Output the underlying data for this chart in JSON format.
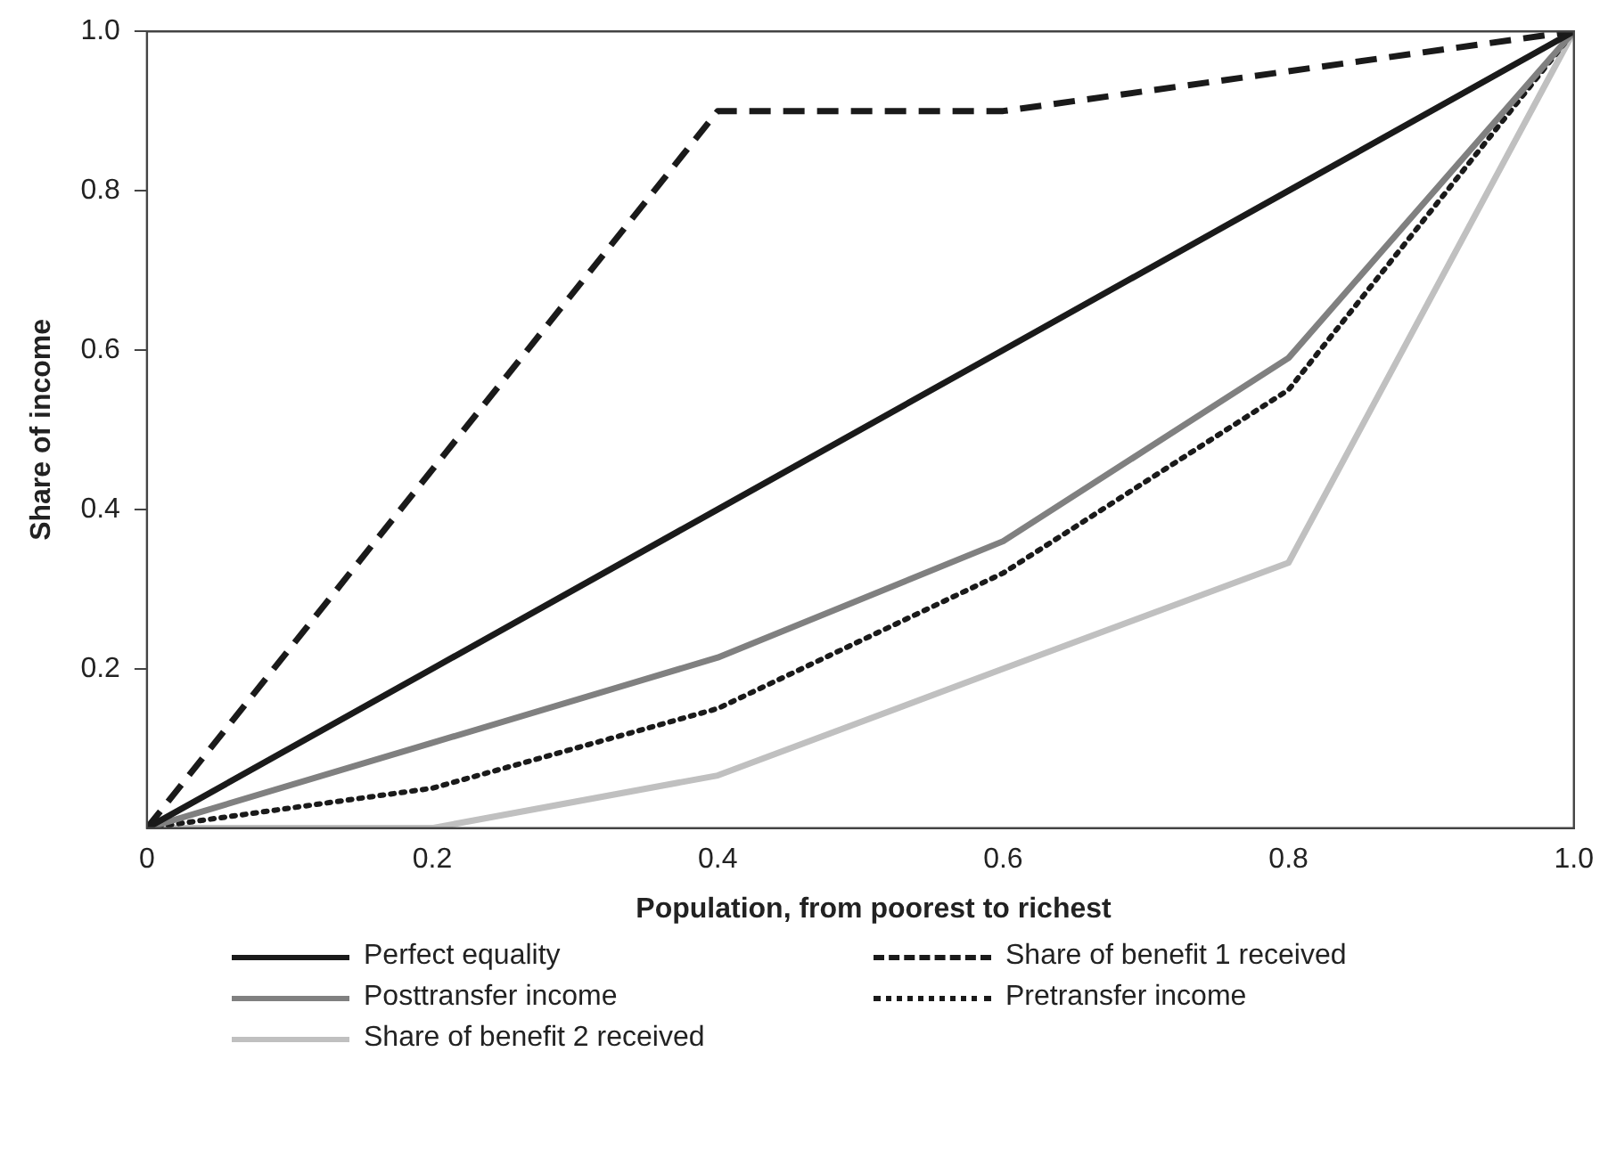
{
  "chart_data": {
    "type": "line",
    "xlabel": "Population, from poorest to richest",
    "ylabel": "Share of income",
    "x": [
      0,
      0.2,
      0.4,
      0.6,
      0.8,
      1
    ],
    "xlim": [
      0,
      1
    ],
    "xticks": [
      0,
      0.2,
      0.4,
      0.6,
      0.8,
      {
        "value": 1,
        "label": "1.0"
      }
    ],
    "ylim": [
      0,
      1
    ],
    "yticks": [
      0.2,
      0.4,
      0.6,
      0.8,
      {
        "value": 1,
        "label": "1.0"
      }
    ],
    "grid": false,
    "legend": "bottom",
    "marker": "none",
    "series": [
      {
        "name": "Perfect equality",
        "color": "#1a1a1a",
        "line_style": "solid",
        "values": [
          0,
          0.2,
          0.4,
          0.6,
          0.8,
          1
        ]
      },
      {
        "name": "Share of benefit 1 received",
        "color": "#1a1a1a",
        "line_style": "dashed",
        "values": [
          0,
          null,
          0.9,
          0.9,
          0.95,
          1
        ],
        "x": [
          0,
          0.2,
          0.4,
          0.6,
          0.8,
          1
        ]
      },
      {
        "name": "Posttransfer income",
        "color": "#808080",
        "line_style": "solid",
        "values": [
          0,
          0.107,
          0.214,
          0.36,
          0.59,
          1
        ]
      },
      {
        "name": "Pretransfer income",
        "color": "#1a1a1a",
        "line_style": "dotted",
        "values": [
          0,
          0.05,
          0.15,
          0.32,
          0.55,
          1
        ]
      },
      {
        "name": "Share of benefit 2 received",
        "color": "#c0c0c0",
        "line_style": "solid",
        "values": [
          0,
          0,
          0.066,
          0.2,
          0.333,
          1
        ]
      }
    ]
  }
}
